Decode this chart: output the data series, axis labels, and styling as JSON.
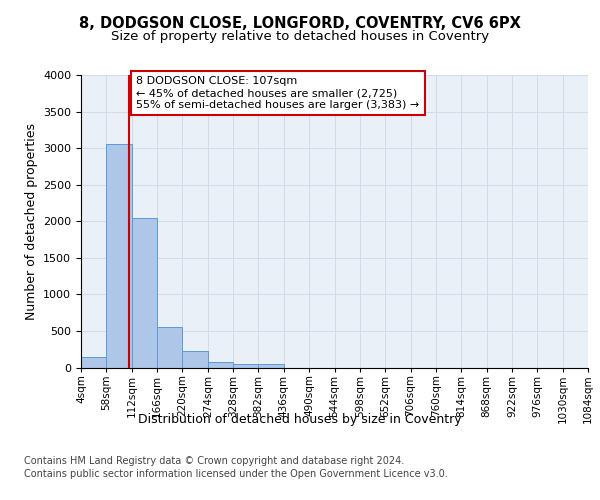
{
  "title": "8, DODGSON CLOSE, LONGFORD, COVENTRY, CV6 6PX",
  "subtitle": "Size of property relative to detached houses in Coventry",
  "xlabel": "Distribution of detached houses by size in Coventry",
  "ylabel": "Number of detached properties",
  "bin_edges": [
    4,
    58,
    112,
    166,
    220,
    274,
    328,
    382,
    436,
    490,
    544,
    598,
    652,
    706,
    760,
    814,
    868,
    922,
    976,
    1030,
    1084
  ],
  "bar_heights": [
    150,
    3050,
    2050,
    550,
    225,
    75,
    50,
    50,
    0,
    0,
    0,
    0,
    0,
    0,
    0,
    0,
    0,
    0,
    0,
    0
  ],
  "bar_color": "#aec6e8",
  "bar_edge_color": "#5b9bd5",
  "grid_color": "#d0dce8",
  "background_color": "#eaf0f8",
  "vline_x": 107,
  "vline_color": "#cc0000",
  "annotation_line1": "8 DODGSON CLOSE: 107sqm",
  "annotation_line2": "← 45% of detached houses are smaller (2,725)",
  "annotation_line3": "55% of semi-detached houses are larger (3,383) →",
  "annotation_box_color": "#cc0000",
  "footnote1": "Contains HM Land Registry data © Crown copyright and database right 2024.",
  "footnote2": "Contains public sector information licensed under the Open Government Licence v3.0.",
  "ylim": [
    0,
    4000
  ],
  "title_fontsize": 10.5,
  "subtitle_fontsize": 9.5,
  "axis_label_fontsize": 9,
  "tick_fontsize": 7.5,
  "annotation_fontsize": 8,
  "footnote_fontsize": 7
}
